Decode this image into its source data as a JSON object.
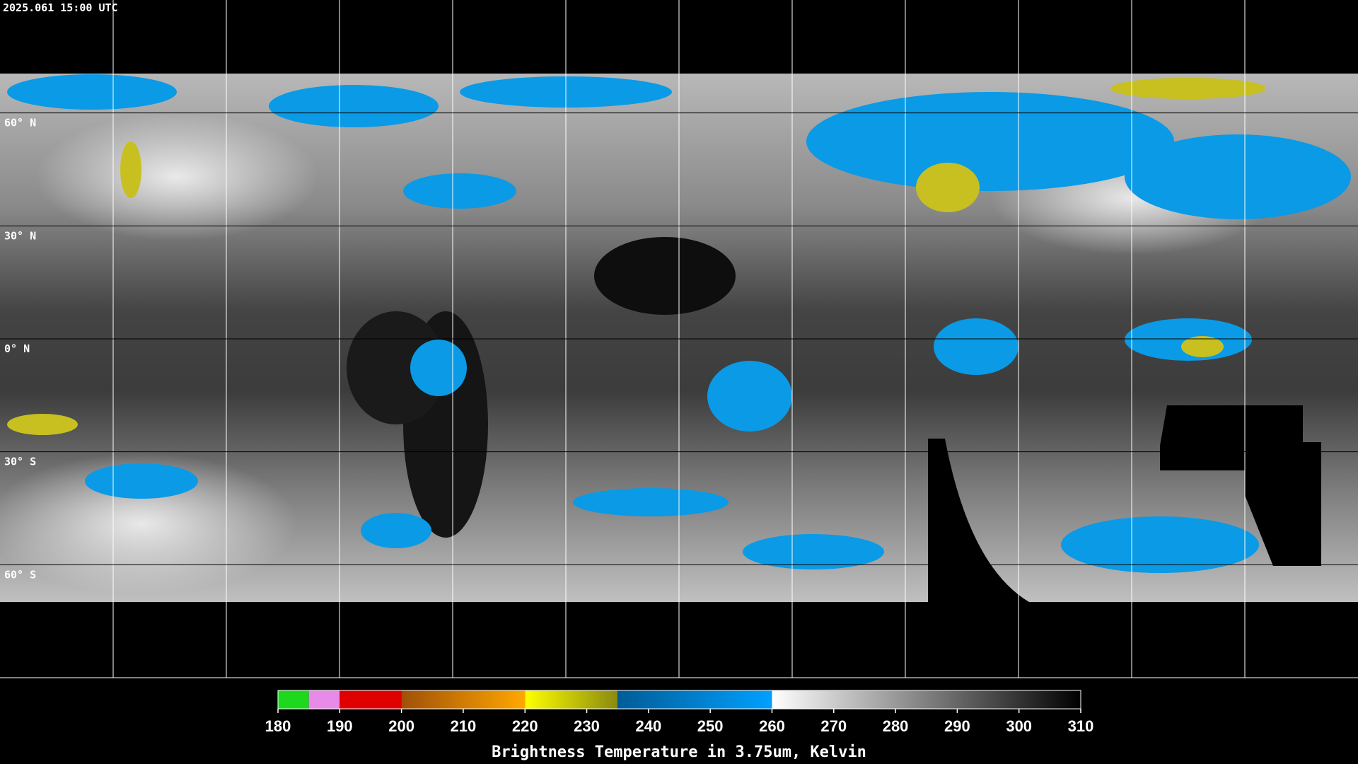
{
  "header": {
    "timestamp": "2025.061 15:00 UTC"
  },
  "map": {
    "lat_ticks": [
      {
        "value": 60,
        "label": "60° N"
      },
      {
        "value": 30,
        "label": "30° N"
      },
      {
        "value": 0,
        "label": "0° N"
      },
      {
        "value": -30,
        "label": "30° S"
      },
      {
        "value": -60,
        "label": "60° S"
      }
    ]
  },
  "colorbar": {
    "range": [
      180,
      310
    ],
    "ticks": [
      180,
      190,
      200,
      210,
      220,
      230,
      240,
      250,
      260,
      270,
      280,
      290,
      300,
      310
    ],
    "segments": [
      {
        "from": 180,
        "to": 185,
        "colors": [
          "#1ed81e",
          "#1ed81e"
        ]
      },
      {
        "from": 185,
        "to": 190,
        "colors": [
          "#e88ae8",
          "#e88ae8"
        ]
      },
      {
        "from": 190,
        "to": 200,
        "colors": [
          "#e00000",
          "#e00000"
        ]
      },
      {
        "from": 200,
        "to": 220,
        "colors": [
          "#a05008",
          "#ffa800"
        ]
      },
      {
        "from": 220,
        "to": 235,
        "colors": [
          "#ffff00",
          "#8a8a10"
        ]
      },
      {
        "from": 235,
        "to": 260,
        "colors": [
          "#005c98",
          "#00a0ff"
        ]
      },
      {
        "from": 260,
        "to": 310,
        "colors": [
          "#ffffff",
          "#000000"
        ]
      }
    ],
    "label": "Brightness Temperature in 3.75um, Kelvin"
  }
}
